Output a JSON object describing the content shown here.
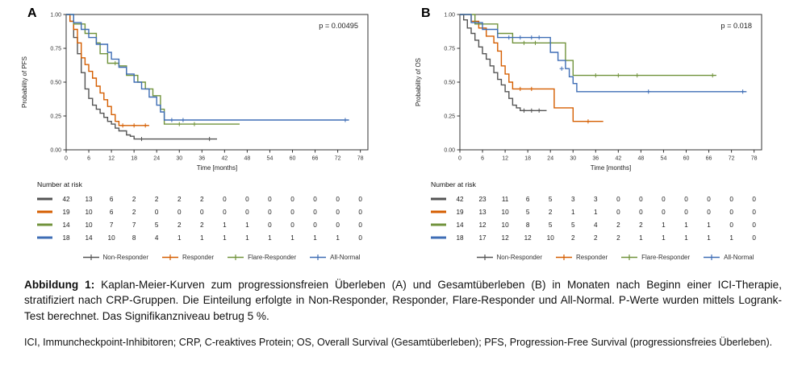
{
  "page": {
    "background": "#ffffff"
  },
  "legend": {
    "items": [
      {
        "label": "Non-Responder",
        "color": "#545454"
      },
      {
        "label": "Responder",
        "color": "#D55E00"
      },
      {
        "label": "Flare-Responder",
        "color": "#71933C"
      },
      {
        "label": "All-Normal",
        "color": "#3E6DB5"
      }
    ]
  },
  "chart_data": [
    {
      "type": "line",
      "subtype": "kaplan-meier-step",
      "panel_label": "A",
      "p_value": "p = 0.00495",
      "xlabel": "Time [months]",
      "ylabel": "Probability of PFS",
      "xlim": [
        0,
        80
      ],
      "ylim": [
        0,
        1
      ],
      "xticks": [
        0,
        6,
        12,
        18,
        24,
        30,
        36,
        42,
        48,
        54,
        60,
        66,
        72,
        78
      ],
      "yticks": [
        "0.00",
        "0.25",
        "0.50",
        "0.75",
        "1.00"
      ],
      "grid": false,
      "legend_position": "bottom",
      "series": [
        {
          "name": "Non-Responder",
          "color": "#545454",
          "steps": [
            [
              0,
              1.0
            ],
            [
              1,
              0.95
            ],
            [
              2,
              0.83
            ],
            [
              3,
              0.71
            ],
            [
              4,
              0.57
            ],
            [
              5,
              0.45
            ],
            [
              6,
              0.38
            ],
            [
              7,
              0.33
            ],
            [
              8,
              0.3
            ],
            [
              9,
              0.27
            ],
            [
              10,
              0.24
            ],
            [
              11,
              0.21
            ],
            [
              12,
              0.19
            ],
            [
              13,
              0.16
            ],
            [
              14,
              0.14
            ],
            [
              16,
              0.11
            ],
            [
              17,
              0.1
            ],
            [
              18,
              0.08
            ],
            [
              40,
              0.08
            ]
          ],
          "censors": [
            [
              20,
              0.08
            ],
            [
              38,
              0.08
            ]
          ]
        },
        {
          "name": "Responder",
          "color": "#D55E00",
          "steps": [
            [
              0,
              1.0
            ],
            [
              1,
              0.95
            ],
            [
              2,
              0.89
            ],
            [
              3,
              0.79
            ],
            [
              4,
              0.68
            ],
            [
              5,
              0.63
            ],
            [
              6,
              0.58
            ],
            [
              7,
              0.53
            ],
            [
              8,
              0.47
            ],
            [
              9,
              0.42
            ],
            [
              10,
              0.37
            ],
            [
              11,
              0.32
            ],
            [
              12,
              0.26
            ],
            [
              13,
              0.21
            ],
            [
              14,
              0.18
            ],
            [
              22,
              0.18
            ]
          ],
          "censors": [
            [
              15,
              0.18
            ],
            [
              18,
              0.18
            ],
            [
              21,
              0.18
            ]
          ]
        },
        {
          "name": "Flare-Responder",
          "color": "#71933C",
          "steps": [
            [
              0,
              1.0
            ],
            [
              2,
              0.93
            ],
            [
              5,
              0.86
            ],
            [
              8,
              0.79
            ],
            [
              9,
              0.71
            ],
            [
              11,
              0.64
            ],
            [
              14,
              0.62
            ],
            [
              16,
              0.55
            ],
            [
              19,
              0.5
            ],
            [
              21,
              0.45
            ],
            [
              23,
              0.4
            ],
            [
              25,
              0.3
            ],
            [
              26,
              0.19
            ],
            [
              46,
              0.19
            ]
          ],
          "censors": [
            [
              13,
              0.64
            ],
            [
              30,
              0.19
            ],
            [
              34,
              0.19
            ]
          ]
        },
        {
          "name": "All-Normal",
          "color": "#3E6DB5",
          "steps": [
            [
              0,
              1.0
            ],
            [
              2,
              0.94
            ],
            [
              4,
              0.89
            ],
            [
              6,
              0.83
            ],
            [
              8,
              0.78
            ],
            [
              11,
              0.72
            ],
            [
              12,
              0.67
            ],
            [
              14,
              0.61
            ],
            [
              16,
              0.56
            ],
            [
              18,
              0.5
            ],
            [
              20,
              0.45
            ],
            [
              22,
              0.39
            ],
            [
              24,
              0.33
            ],
            [
              25,
              0.28
            ],
            [
              26,
              0.22
            ],
            [
              75,
              0.22
            ]
          ],
          "censors": [
            [
              28,
              0.22
            ],
            [
              31,
              0.22
            ],
            [
              74,
              0.22
            ]
          ]
        }
      ],
      "risk_table": {
        "title": "Number at risk",
        "times": [
          0,
          6,
          12,
          18,
          24,
          30,
          36,
          42,
          48,
          54,
          60,
          66,
          72,
          78
        ],
        "rows": [
          {
            "name": "Non-Responder",
            "color": "#545454",
            "counts": [
              42,
              13,
              6,
              2,
              2,
              2,
              2,
              0,
              0,
              0,
              0,
              0,
              0,
              0
            ]
          },
          {
            "name": "Responder",
            "color": "#D55E00",
            "counts": [
              19,
              10,
              6,
              2,
              0,
              0,
              0,
              0,
              0,
              0,
              0,
              0,
              0,
              0
            ]
          },
          {
            "name": "Flare-Responder",
            "color": "#71933C",
            "counts": [
              14,
              10,
              7,
              7,
              5,
              2,
              2,
              1,
              1,
              0,
              0,
              0,
              0,
              0
            ]
          },
          {
            "name": "All-Normal",
            "color": "#3E6DB5",
            "counts": [
              18,
              14,
              10,
              8,
              4,
              1,
              1,
              1,
              1,
              1,
              1,
              1,
              1,
              0
            ]
          }
        ]
      }
    },
    {
      "type": "line",
      "subtype": "kaplan-meier-step",
      "panel_label": "B",
      "p_value": "p = 0.018",
      "xlabel": "Time [months]",
      "ylabel": "Probability of OS",
      "xlim": [
        0,
        80
      ],
      "ylim": [
        0,
        1
      ],
      "xticks": [
        0,
        6,
        12,
        18,
        24,
        30,
        36,
        42,
        48,
        54,
        60,
        66,
        72,
        78
      ],
      "yticks": [
        "0.00",
        "0.25",
        "0.50",
        "0.75",
        "1.00"
      ],
      "grid": false,
      "legend_position": "bottom",
      "series": [
        {
          "name": "Non-Responder",
          "color": "#545454",
          "steps": [
            [
              0,
              1.0
            ],
            [
              1,
              0.96
            ],
            [
              2,
              0.9
            ],
            [
              3,
              0.86
            ],
            [
              4,
              0.81
            ],
            [
              5,
              0.76
            ],
            [
              6,
              0.71
            ],
            [
              7,
              0.67
            ],
            [
              8,
              0.62
            ],
            [
              9,
              0.57
            ],
            [
              10,
              0.52
            ],
            [
              11,
              0.48
            ],
            [
              12,
              0.43
            ],
            [
              13,
              0.38
            ],
            [
              14,
              0.33
            ],
            [
              15,
              0.31
            ],
            [
              16,
              0.29
            ],
            [
              23,
              0.29
            ]
          ],
          "censors": [
            [
              17,
              0.29
            ],
            [
              19,
              0.29
            ],
            [
              21,
              0.29
            ]
          ]
        },
        {
          "name": "Responder",
          "color": "#D55E00",
          "steps": [
            [
              0,
              1.0
            ],
            [
              3,
              0.95
            ],
            [
              5,
              0.9
            ],
            [
              7,
              0.84
            ],
            [
              9,
              0.79
            ],
            [
              10,
              0.73
            ],
            [
              11,
              0.62
            ],
            [
              12,
              0.56
            ],
            [
              13,
              0.5
            ],
            [
              14,
              0.45
            ],
            [
              25,
              0.31
            ],
            [
              30,
              0.21
            ],
            [
              38,
              0.21
            ]
          ],
          "censors": [
            [
              16,
              0.45
            ],
            [
              19,
              0.45
            ],
            [
              34,
              0.21
            ]
          ]
        },
        {
          "name": "Flare-Responder",
          "color": "#71933C",
          "steps": [
            [
              0,
              1.0
            ],
            [
              4,
              0.93
            ],
            [
              10,
              0.86
            ],
            [
              14,
              0.79
            ],
            [
              28,
              0.66
            ],
            [
              30,
              0.55
            ],
            [
              68,
              0.55
            ]
          ],
          "censors": [
            [
              17,
              0.79
            ],
            [
              20,
              0.79
            ],
            [
              24,
              0.79
            ],
            [
              36,
              0.55
            ],
            [
              42,
              0.55
            ],
            [
              47,
              0.55
            ],
            [
              67,
              0.55
            ]
          ]
        },
        {
          "name": "All-Normal",
          "color": "#3E6DB5",
          "steps": [
            [
              0,
              1.0
            ],
            [
              3,
              0.94
            ],
            [
              6,
              0.89
            ],
            [
              10,
              0.83
            ],
            [
              24,
              0.72
            ],
            [
              26,
              0.66
            ],
            [
              28,
              0.6
            ],
            [
              29,
              0.54
            ],
            [
              30,
              0.49
            ],
            [
              31,
              0.43
            ],
            [
              76,
              0.43
            ]
          ],
          "censors": [
            [
              13,
              0.83
            ],
            [
              16,
              0.83
            ],
            [
              19,
              0.83
            ],
            [
              21,
              0.83
            ],
            [
              27,
              0.6
            ],
            [
              50,
              0.43
            ],
            [
              75,
              0.43
            ]
          ]
        }
      ],
      "risk_table": {
        "title": "Number at risk",
        "times": [
          0,
          6,
          12,
          18,
          24,
          30,
          36,
          42,
          48,
          54,
          60,
          66,
          72,
          78
        ],
        "rows": [
          {
            "name": "Non-Responder",
            "color": "#545454",
            "counts": [
              42,
              23,
              11,
              6,
              5,
              3,
              3,
              0,
              0,
              0,
              0,
              0,
              0,
              0
            ]
          },
          {
            "name": "Responder",
            "color": "#D55E00",
            "counts": [
              19,
              13,
              10,
              5,
              2,
              1,
              1,
              0,
              0,
              0,
              0,
              0,
              0,
              0
            ]
          },
          {
            "name": "Flare-Responder",
            "color": "#71933C",
            "counts": [
              14,
              12,
              10,
              8,
              5,
              5,
              4,
              2,
              2,
              1,
              1,
              1,
              0,
              0
            ]
          },
          {
            "name": "All-Normal",
            "color": "#3E6DB5",
            "counts": [
              18,
              17,
              12,
              12,
              10,
              2,
              2,
              2,
              1,
              1,
              1,
              1,
              1,
              0
            ]
          }
        ]
      }
    }
  ],
  "caption": {
    "label": "Abbildung 1:",
    "text": " Kaplan-Meier-Kurven zum progressionsfreien Überleben (A) und Gesamtüberleben (B) in Monaten nach Beginn einer ICI-Therapie, stratifiziert nach CRP-Gruppen. Die Einteilung erfolgte in Non-Responder, Responder, Flare-Responder und All-Normal. P-Werte wurden mittels Logrank-Test berechnet. Das Signifikanzniveau betrug 5 %."
  },
  "footnote": {
    "text": "ICI, Immuncheckpoint-Inhibitoren; CRP, C-reaktives Protein; OS, Overall Survival (Gesamtüberleben); PFS, Progression-Free Survival (progressionsfreies Überleben)."
  }
}
